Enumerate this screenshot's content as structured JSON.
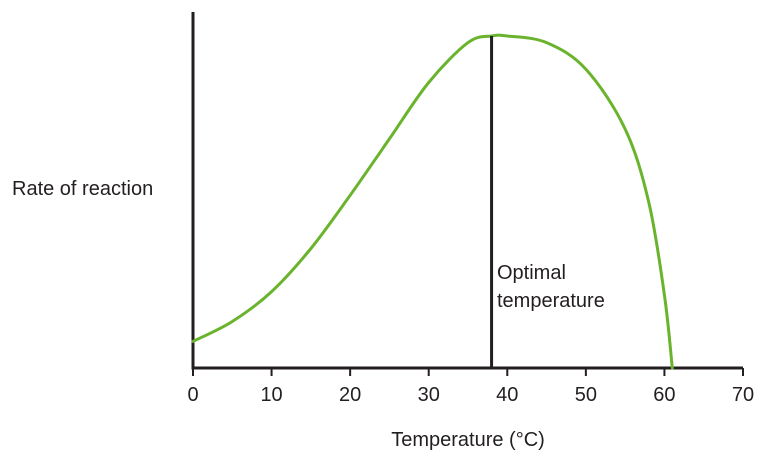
{
  "chart_data": {
    "type": "line",
    "title": "",
    "xlabel": "Temperature (°C)",
    "ylabel": "Rate of reaction",
    "xlim": [
      0,
      70
    ],
    "xticks": [
      0,
      10,
      20,
      30,
      40,
      50,
      60,
      70
    ],
    "y_ticks_shown": false,
    "grid": false,
    "legend": "none",
    "series": [
      {
        "color": "#6ab42d",
        "x": [
          0,
          5,
          10,
          15,
          20,
          25,
          30,
          35,
          38,
          40,
          45,
          50,
          55,
          58,
          60,
          61
        ],
        "y": [
          0.08,
          0.14,
          0.23,
          0.36,
          0.52,
          0.69,
          0.86,
          0.98,
          1.0,
          1.0,
          0.98,
          0.9,
          0.72,
          0.5,
          0.22,
          0.0
        ]
      }
    ],
    "annotations": [
      {
        "type": "vline",
        "x": 38,
        "label_lines": [
          "Optimal",
          "temperature"
        ]
      }
    ]
  }
}
